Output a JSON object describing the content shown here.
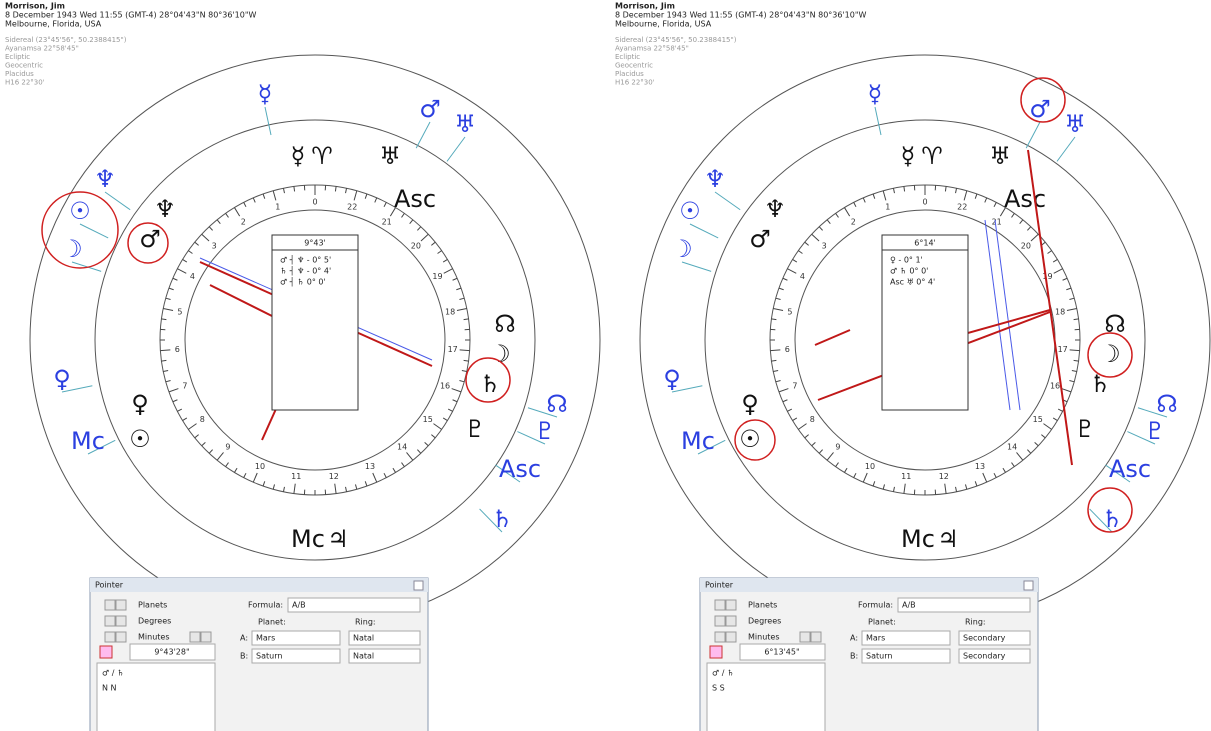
{
  "panels": [
    {
      "header": {
        "name": "Morrison, Jim",
        "line1": "8 December 1943  Wed  11:55 (GMT-4) 28°04'43\"N  80°36'10\"W",
        "line2": "Melbourne, Florida, USA"
      },
      "settings": [
        "Sidereal (23°45'56\", 50.2388415\")",
        "Ayanamsa 22°58'45\"",
        "Ecliptic",
        "Geocentric",
        "Placidus",
        "H16  22°30'"
      ],
      "outer_glyphs": [
        "☿",
        "♂",
        "♅",
        "♆",
        "☉",
        "☽",
        "♀",
        "Mc",
        "☊",
        "♇",
        "Asc",
        "♄",
        "♃"
      ],
      "natal_glyphs": [
        "☿",
        "♈",
        "♅",
        "Asc",
        "♆",
        "♂",
        "☊",
        "☽",
        "♄",
        "♇",
        "♀",
        "☉",
        "Mc",
        "♃"
      ],
      "dial_labels": [
        0,
        1,
        2,
        3,
        4,
        5,
        6,
        7,
        8,
        9,
        10,
        11,
        12,
        13,
        14,
        15,
        16,
        17,
        18,
        19,
        20,
        21,
        22
      ],
      "midpoint_box": {
        "angle": "9°43'",
        "rows": [
          "♂ ┤ ♆ - 0° 5'",
          "♄ ┤ ♆ - 0° 4'",
          "♂ ┤ ♄   0° 0'"
        ]
      },
      "pointer": {
        "title": "Pointer",
        "toggles": [
          "Planets",
          "Degrees",
          "Minutes"
        ],
        "formula_label": "Formula:",
        "formula": "A/B",
        "planet_label": "Planet:",
        "ring_label": "Ring:",
        "a_label": "A:",
        "a_planet": "Mars",
        "a_ring": "Natal",
        "b_label": "B:",
        "b_planet": "Saturn",
        "b_ring": "Natal",
        "result": "9°43'28\"",
        "pair": "♂ / ♄",
        "rings": "N   N"
      }
    },
    {
      "header": {
        "name": "Morrison, Jim",
        "line1": "8 December 1943  Wed  11:55 (GMT-4) 28°04'43\"N  80°36'10\"W",
        "line2": "Melbourne, Florida, USA"
      },
      "settings": [
        "Sidereal (23°45'56\", 50.2388415\")",
        "Ayanamsa 22°58'45\"",
        "Ecliptic",
        "Geocentric",
        "Placidus",
        "H16  22°30'"
      ],
      "outer_glyphs": [
        "☿",
        "♂",
        "♅",
        "♆",
        "☉",
        "☽",
        "♀",
        "Mc",
        "☊",
        "♇",
        "Asc",
        "♄",
        "♃"
      ],
      "natal_glyphs": [
        "☿",
        "♈",
        "♅",
        "Asc",
        "♆",
        "♂",
        "☊",
        "☽",
        "♄",
        "♇",
        "♀",
        "☉",
        "Mc",
        "♃"
      ],
      "dial_labels": [
        0,
        1,
        2,
        3,
        4,
        5,
        6,
        7,
        8,
        9,
        10,
        11,
        12,
        13,
        14,
        15,
        16,
        17,
        18,
        19,
        20,
        21,
        22
      ],
      "midpoint_box": {
        "angle": "6°14'",
        "rows": [
          "♀   - 0° 1'",
          "♂ ♄   0° 0'",
          "Asc ♅   0° 4'"
        ]
      },
      "pointer": {
        "title": "Pointer",
        "toggles": [
          "Planets",
          "Degrees",
          "Minutes"
        ],
        "formula_label": "Formula:",
        "formula": "A/B",
        "planet_label": "Planet:",
        "ring_label": "Ring:",
        "a_label": "A:",
        "a_planet": "Mars",
        "a_ring": "Secondary",
        "b_label": "B:",
        "b_planet": "Saturn",
        "b_ring": "Secondary",
        "result": "6°13'45\"",
        "pair": "♂ / ♄",
        "rings": "S   S"
      }
    }
  ]
}
